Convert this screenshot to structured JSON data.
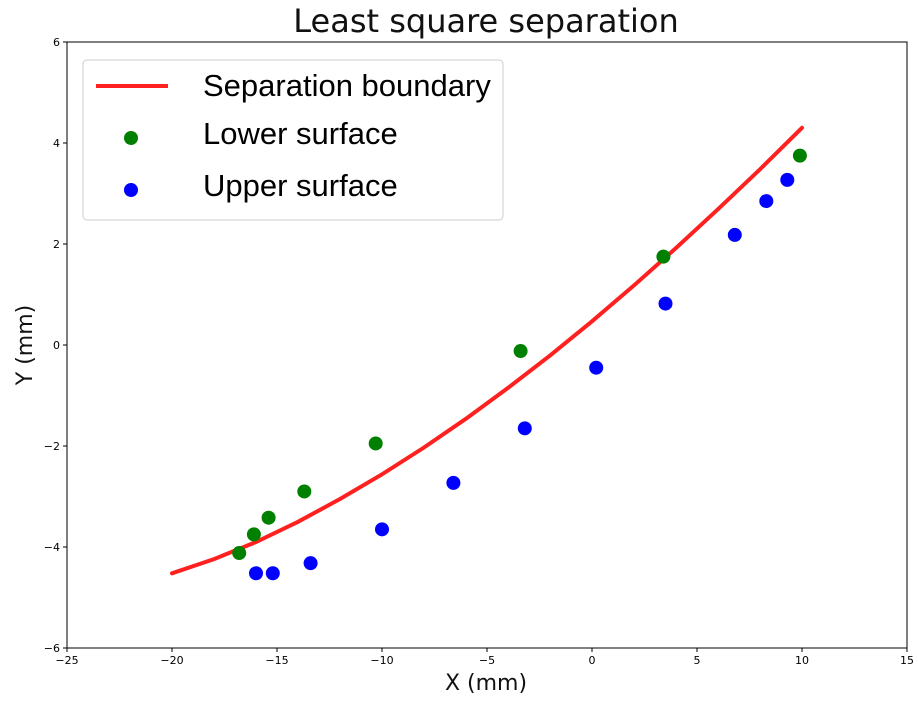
{
  "chart_data": {
    "type": "scatter",
    "title": "Least square separation",
    "xlabel": "X (mm)",
    "ylabel": "Y (mm)",
    "xlim": [
      -25,
      15
    ],
    "ylim": [
      -6,
      6
    ],
    "xticks": [
      -25,
      -20,
      -15,
      -10,
      -5,
      0,
      5,
      10,
      15
    ],
    "yticks": [
      -6,
      -4,
      -2,
      0,
      2,
      4,
      6
    ],
    "grid": false,
    "legend_position": "top-left",
    "series": [
      {
        "name": "Separation boundary",
        "kind": "line",
        "color": "#ff2020",
        "x": [
          -20,
          -18,
          -16,
          -14,
          -12,
          -10,
          -8,
          -6,
          -4,
          -2,
          0,
          2,
          4,
          6,
          8,
          10
        ],
        "y": [
          -4.52,
          -4.24,
          -3.9,
          -3.5,
          -3.05,
          -2.56,
          -2.03,
          -1.46,
          -0.85,
          -0.21,
          0.47,
          1.18,
          1.92,
          2.69,
          3.48,
          4.3
        ]
      },
      {
        "name": "Lower surface",
        "kind": "scatter",
        "color": "#008000",
        "x": [
          -16.8,
          -16.1,
          -15.4,
          -13.7,
          -10.3,
          -3.4,
          3.4,
          9.9
        ],
        "y": [
          -4.12,
          -3.75,
          -3.42,
          -2.9,
          -1.95,
          -0.12,
          1.75,
          3.75
        ]
      },
      {
        "name": "Upper surface",
        "kind": "scatter",
        "color": "#0000ff",
        "x": [
          -16.0,
          -15.2,
          -13.4,
          -10.0,
          -6.6,
          -3.2,
          0.2,
          3.5,
          6.8,
          8.3,
          9.3
        ],
        "y": [
          -4.52,
          -4.52,
          -4.32,
          -3.65,
          -2.73,
          -1.65,
          -0.45,
          0.82,
          2.18,
          2.85,
          3.27
        ]
      }
    ]
  }
}
